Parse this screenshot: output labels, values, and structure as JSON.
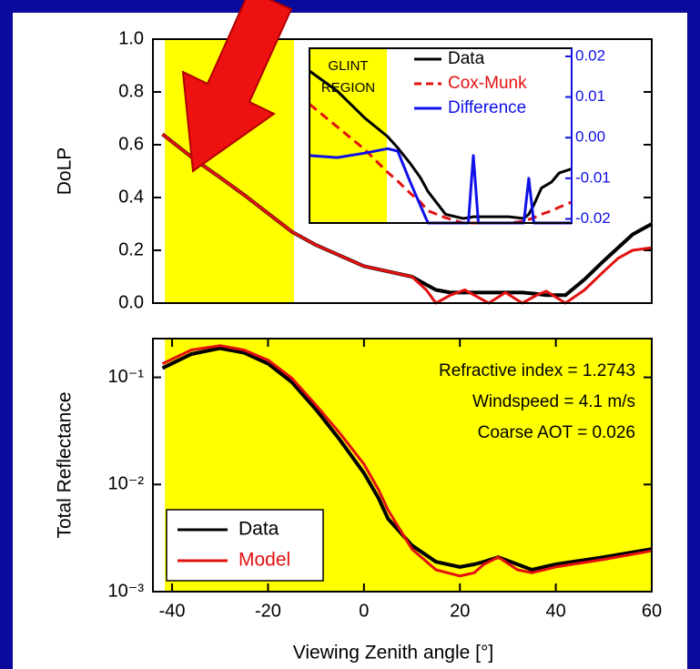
{
  "chart_data": [
    {
      "type": "line",
      "ylabel": "DoLP",
      "xlim": [
        -44,
        60
      ],
      "ylim": [
        0,
        1
      ],
      "yticks": [
        {
          "value": 0,
          "label": "0.0"
        },
        0.2,
        0.4,
        0.6,
        0.8,
        {
          "value": 1,
          "label": "1.0"
        }
      ],
      "shade": {
        "x": [
          -41.5,
          -14.6
        ],
        "color": "#ffff00"
      },
      "x": [
        -42,
        -35,
        -30,
        -25,
        -20,
        -15,
        -10,
        -5,
        0,
        5,
        10,
        13,
        15,
        18,
        21,
        24,
        26,
        29.5,
        33,
        36,
        38,
        42,
        46,
        50,
        53,
        56,
        60
      ],
      "series": [
        {
          "name": "Data",
          "color": "#000000",
          "values": [
            0.64,
            0.54,
            0.476,
            0.41,
            0.34,
            0.27,
            0.22,
            0.18,
            0.14,
            0.12,
            0.1,
            0.07,
            0.05,
            0.04,
            0.04,
            0.04,
            0.04,
            0.04,
            0.04,
            0.035,
            0.03,
            0.03,
            0.09,
            0.16,
            0.21,
            0.26,
            0.3
          ]
        },
        {
          "name": "Model",
          "color": "#e41010",
          "values": [
            0.64,
            0.54,
            0.476,
            0.41,
            0.34,
            0.27,
            0.22,
            0.18,
            0.14,
            0.12,
            0.1,
            0.05,
            0.0,
            0.03,
            0.05,
            0.02,
            0.0,
            0.04,
            0.0,
            0.03,
            0.045,
            0.0,
            0.05,
            0.12,
            0.17,
            0.2,
            0.21
          ]
        }
      ]
    },
    {
      "type": "line",
      "legend": "upper right",
      "xlim": [
        -44,
        60
      ],
      "ylim": [
        0,
        1
      ],
      "y2lim": [
        -0.021,
        0.022
      ],
      "y2ticks": [
        0.02,
        0.01,
        {
          "value": 0,
          "label": "0.00"
        },
        -0.01,
        -0.02
      ],
      "shade": {
        "x": [
          -44,
          -13.3
        ],
        "color": "#ffff00"
      },
      "shade_label": [
        "GLINT",
        "REGION"
      ],
      "x": [
        -44,
        -33,
        -22,
        -13,
        -9,
        -4,
        0,
        3,
        10,
        17,
        19,
        21,
        23,
        28,
        35,
        41,
        43,
        45,
        48,
        52,
        55,
        60
      ],
      "series": [
        {
          "name": "Data",
          "color": "#000000",
          "values": [
            0.87,
            0.755,
            0.6,
            0.495,
            0.43,
            0.34,
            0.26,
            0.18,
            0.05,
            0.026,
            0.03,
            0.036,
            0.036,
            0.036,
            0.036,
            0.026,
            0.05,
            0.104,
            0.2,
            0.234,
            0.286,
            0.31
          ]
        },
        {
          "name": "Cox-Munk",
          "color": "#e41010",
          "dash": true,
          "values": [
            0.68,
            0.55,
            0.42,
            0.29,
            0.24,
            0.17,
            0.12,
            0.07,
            0.03,
            0.0,
            0.0,
            0.0,
            0.0,
            0.0,
            0.0,
            0.01,
            0.02,
            0.03,
            0.05,
            0.07,
            0.09,
            0.12
          ]
        },
        {
          "name": "Difference",
          "color": "#1010e8",
          "axis": "y2",
          "values": [
            -0.0044,
            -0.0049,
            -0.0038,
            -0.0027,
            -0.0033,
            -0.011,
            -0.0167,
            -0.021,
            -0.021,
            -0.021,
            -0.021,
            -0.0044,
            -0.021,
            -0.021,
            -0.021,
            -0.021,
            -0.01,
            -0.021,
            -0.021,
            -0.021,
            -0.021,
            -0.021
          ]
        }
      ]
    },
    {
      "type": "line",
      "ylabel": "Total Reflectance",
      "xlabel": "Viewing Zenith angle [°]",
      "log_y": true,
      "legend": "lower left",
      "xlim": [
        -44,
        60
      ],
      "ylim": [
        0.001,
        0.23
      ],
      "xticks": [
        -40,
        -20,
        0,
        20,
        40,
        60
      ],
      "yticks": [
        {
          "value": 0.1,
          "label": "10⁻¹"
        },
        {
          "value": 0.01,
          "label": "10⁻²"
        },
        {
          "value": 0.001,
          "label": "10⁻³"
        }
      ],
      "shade": {
        "x": [
          -41.5,
          60
        ],
        "color": "#ffff00"
      },
      "annotations": [
        "Refractive index = 1.2743",
        "Windspeed = 4.1 m/s",
        "Coarse AOT = 0.026"
      ],
      "x": [
        -42,
        -36,
        -30,
        -25,
        -20,
        -15,
        -10,
        -5,
        0,
        3,
        5,
        10,
        15,
        20,
        23,
        25,
        28,
        32,
        35,
        40,
        50,
        60
      ],
      "series": [
        {
          "name": "Data",
          "color": "#000000",
          "values": [
            0.122,
            0.165,
            0.187,
            0.17,
            0.134,
            0.09,
            0.05,
            0.026,
            0.0128,
            0.0075,
            0.0048,
            0.0027,
            0.0019,
            0.0017,
            0.0018,
            0.0019,
            0.0021,
            0.0018,
            0.0016,
            0.0018,
            0.0021,
            0.0025
          ]
        },
        {
          "name": "Model",
          "color": "#e41010",
          "values": [
            0.134,
            0.18,
            0.198,
            0.18,
            0.145,
            0.098,
            0.055,
            0.03,
            0.0155,
            0.009,
            0.0058,
            0.0025,
            0.0016,
            0.0014,
            0.0015,
            0.0018,
            0.0021,
            0.0016,
            0.0015,
            0.0017,
            0.002,
            0.0024
          ]
        }
      ]
    }
  ]
}
